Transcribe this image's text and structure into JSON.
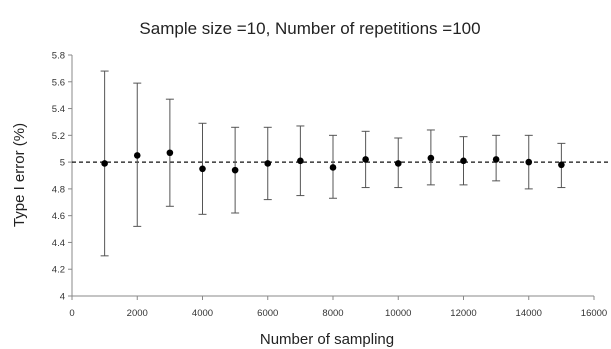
{
  "chart_data": {
    "type": "scatter",
    "title": "Sample size =10, Number of repetitions =100",
    "xlabel": "Number of sampling",
    "ylabel": "Type I error (%)",
    "xlim": [
      0,
      16000
    ],
    "ylim": [
      4,
      5.8
    ],
    "x_ticks": [
      0,
      2000,
      4000,
      6000,
      8000,
      10000,
      12000,
      14000,
      16000
    ],
    "y_ticks": [
      "4",
      "4.2",
      "4.4",
      "4.6",
      "4.8",
      "5",
      "5.2",
      "5.4",
      "5.6",
      "5.8"
    ],
    "reference_line": {
      "y": 5,
      "style": "dashed"
    },
    "grid": false,
    "legend": "none",
    "series": [
      {
        "points": [
          {
            "x": 1000,
            "y": 4.99,
            "low": 4.3,
            "high": 5.68
          },
          {
            "x": 2000,
            "y": 5.05,
            "low": 4.52,
            "high": 5.59
          },
          {
            "x": 3000,
            "y": 5.07,
            "low": 4.67,
            "high": 5.47
          },
          {
            "x": 4000,
            "y": 4.95,
            "low": 4.61,
            "high": 5.29
          },
          {
            "x": 5000,
            "y": 4.94,
            "low": 4.62,
            "high": 5.26
          },
          {
            "x": 6000,
            "y": 4.99,
            "low": 4.72,
            "high": 5.26
          },
          {
            "x": 7000,
            "y": 5.01,
            "low": 4.75,
            "high": 5.27
          },
          {
            "x": 8000,
            "y": 4.96,
            "low": 4.73,
            "high": 5.2
          },
          {
            "x": 9000,
            "y": 5.02,
            "low": 4.81,
            "high": 5.23
          },
          {
            "x": 10000,
            "y": 4.99,
            "low": 4.81,
            "high": 5.18
          },
          {
            "x": 11000,
            "y": 5.03,
            "low": 4.83,
            "high": 5.24
          },
          {
            "x": 12000,
            "y": 5.01,
            "low": 4.83,
            "high": 5.19
          },
          {
            "x": 13000,
            "y": 5.02,
            "low": 4.86,
            "high": 5.2
          },
          {
            "x": 14000,
            "y": 5.0,
            "low": 4.8,
            "high": 5.2
          },
          {
            "x": 15000,
            "y": 4.98,
            "low": 4.81,
            "high": 5.14
          }
        ],
        "color": "#000000",
        "errorbar_color": "#555555"
      }
    ]
  }
}
